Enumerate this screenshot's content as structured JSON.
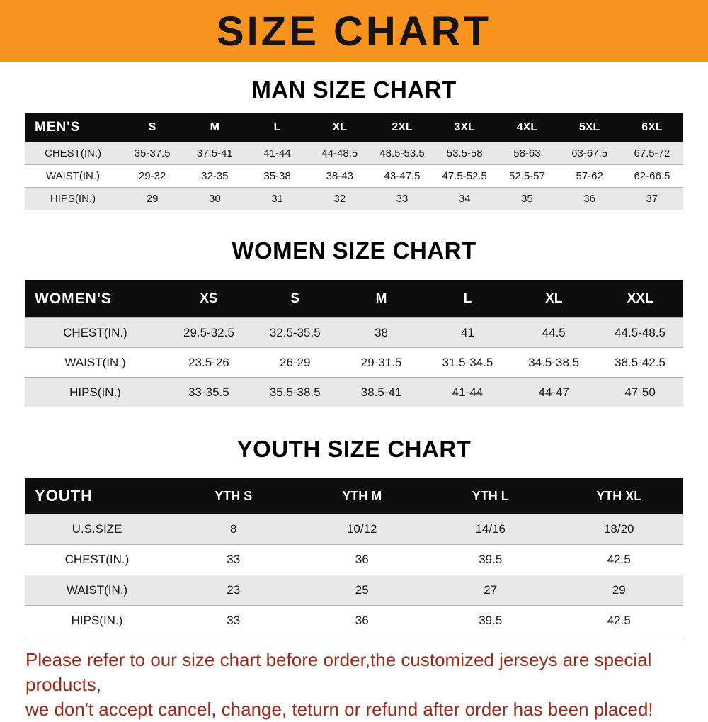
{
  "banner": {
    "title": "SIZE CHART",
    "bg_color": "#F7941E",
    "text_color": "#161310"
  },
  "sections": [
    {
      "heading": "MAN SIZE CHART",
      "table": {
        "header": [
          "MEN'S",
          "S",
          "M",
          "L",
          "XL",
          "2XL",
          "3XL",
          "4XL",
          "5XL",
          "6XL"
        ],
        "rows": [
          {
            "label": "CHEST(IN.)",
            "values": [
              "35-37.5",
              "37.5-41",
              "41-44",
              "44-48.5",
              "48.5-53.5",
              "53.5-58",
              "58-63",
              "63-67.5",
              "67.5-72"
            ]
          },
          {
            "label": "WAIST(IN.)",
            "values": [
              "29-32",
              "32-35",
              "35-38",
              "38-43",
              "43-47.5",
              "47.5-52.5",
              "52.5-57",
              "57-62",
              "62-66.5"
            ]
          },
          {
            "label": "HIPS(IN.)",
            "values": [
              "29",
              "30",
              "31",
              "32",
              "33",
              "34",
              "35",
              "36",
              "37"
            ]
          }
        ]
      }
    },
    {
      "heading": "WOMEN SIZE CHART",
      "table": {
        "header": [
          "WOMEN'S",
          "XS",
          "S",
          "M",
          "L",
          "XL",
          "XXL"
        ],
        "rows": [
          {
            "label": "CHEST(IN.)",
            "values": [
              "29.5-32.5",
              "32.5-35.5",
              "38",
              "41",
              "44.5",
              "44.5-48.5"
            ]
          },
          {
            "label": "WAIST(IN.)",
            "values": [
              "23.5-26",
              "26-29",
              "29-31.5",
              "31.5-34.5",
              "34.5-38.5",
              "38.5-42.5"
            ]
          },
          {
            "label": "HIPS(IN.)",
            "values": [
              "33-35.5",
              "35.5-38.5",
              "38.5-41",
              "41-44",
              "44-47",
              "47-50"
            ]
          }
        ]
      }
    },
    {
      "heading": "YOUTH SIZE CHART",
      "table": {
        "header": [
          "YOUTH",
          "YTH S",
          "YTH M",
          "YTH L",
          "YTH XL"
        ],
        "rows": [
          {
            "label": "U.S.SIZE",
            "values": [
              "8",
              "10/12",
              "14/16",
              "18/20"
            ]
          },
          {
            "label": "CHEST(IN.)",
            "values": [
              "33",
              "36",
              "39.5",
              "42.5"
            ]
          },
          {
            "label": "WAIST(IN.)",
            "values": [
              "23",
              "25",
              "27",
              "29"
            ]
          },
          {
            "label": "HIPS(IN.)",
            "values": [
              "33",
              "36",
              "39.5",
              "42.5"
            ]
          }
        ]
      }
    }
  ],
  "footer": {
    "lines": [
      "Please refer to our size chart before order,the customized jerseys are special products,",
      "we don't accept cancel, change, teturn or refund after order has been placed!"
    ],
    "text_color": "#9C2A1C"
  }
}
